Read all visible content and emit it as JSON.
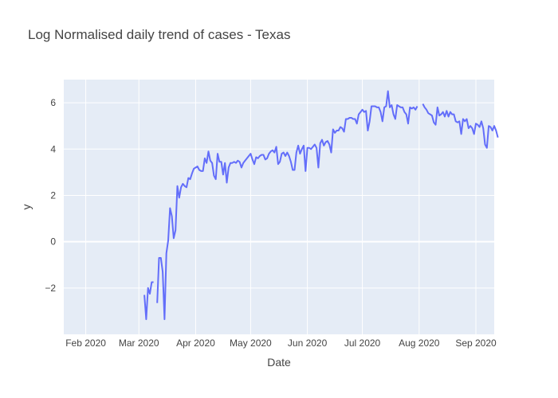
{
  "chart_data": {
    "type": "line",
    "title": "Log Normalised daily trend of cases - Texas",
    "xlabel": "Date",
    "ylabel": "y",
    "x_tick_labels": [
      "Feb 2020",
      "Mar 2020",
      "Apr 2020",
      "May 2020",
      "Jun 2020",
      "Jul 2020",
      "Aug 2020",
      "Sep 2020"
    ],
    "y_ticks": [
      -2,
      0,
      2,
      4,
      6
    ],
    "xlim": [
      "2020-01-20",
      "2020-09-11"
    ],
    "ylim": [
      -4.0,
      7.0
    ],
    "grid": true,
    "colors": {
      "line": "#636efa",
      "plot_bg": "#e5ecf6",
      "grid": "#ffffff"
    },
    "series": [
      {
        "segments": [
          [
            [
              "2020-03-04",
              -2.3
            ],
            [
              "2020-03-05",
              -3.35
            ],
            [
              "2020-03-06",
              -2.0
            ],
            [
              "2020-03-07",
              -2.25
            ],
            [
              "2020-03-08",
              -1.75
            ],
            [
              "2020-03-09",
              -1.75
            ]
          ],
          [
            [
              "2020-03-11",
              -2.65
            ],
            [
              "2020-03-12",
              -0.7
            ],
            [
              "2020-03-13",
              -0.7
            ],
            [
              "2020-03-14",
              -1.3
            ],
            [
              "2020-03-15",
              -3.35
            ],
            [
              "2020-03-16",
              -0.5
            ],
            [
              "2020-03-17",
              0.05
            ],
            [
              "2020-03-18",
              1.45
            ],
            [
              "2020-03-19",
              1.1
            ],
            [
              "2020-03-20",
              0.15
            ],
            [
              "2020-03-21",
              0.5
            ],
            [
              "2020-03-22",
              2.4
            ],
            [
              "2020-03-23",
              1.9
            ],
            [
              "2020-03-24",
              2.35
            ],
            [
              "2020-03-25",
              2.5
            ],
            [
              "2020-03-26",
              2.4
            ],
            [
              "2020-03-27",
              2.35
            ],
            [
              "2020-03-28",
              2.75
            ],
            [
              "2020-03-29",
              2.7
            ],
            [
              "2020-03-30",
              2.95
            ],
            [
              "2020-03-31",
              3.15
            ],
            [
              "2020-04-01",
              3.2
            ],
            [
              "2020-04-02",
              3.25
            ],
            [
              "2020-04-03",
              3.1
            ],
            [
              "2020-04-04",
              3.05
            ],
            [
              "2020-04-05",
              3.05
            ],
            [
              "2020-04-06",
              3.6
            ],
            [
              "2020-04-07",
              3.4
            ],
            [
              "2020-04-08",
              3.9
            ],
            [
              "2020-04-09",
              3.5
            ],
            [
              "2020-04-10",
              3.4
            ],
            [
              "2020-04-11",
              2.85
            ],
            [
              "2020-04-12",
              2.7
            ],
            [
              "2020-04-13",
              3.8
            ],
            [
              "2020-04-14",
              3.45
            ],
            [
              "2020-04-15",
              3.45
            ],
            [
              "2020-04-16",
              2.9
            ],
            [
              "2020-04-17",
              3.4
            ],
            [
              "2020-04-18",
              2.55
            ],
            [
              "2020-04-19",
              3.2
            ],
            [
              "2020-04-20",
              3.4
            ],
            [
              "2020-04-21",
              3.4
            ],
            [
              "2020-04-22",
              3.45
            ],
            [
              "2020-04-23",
              3.4
            ],
            [
              "2020-04-24",
              3.5
            ],
            [
              "2020-04-25",
              3.45
            ],
            [
              "2020-04-26",
              3.2
            ],
            [
              "2020-04-27",
              3.4
            ],
            [
              "2020-04-28",
              3.5
            ],
            [
              "2020-04-29",
              3.6
            ],
            [
              "2020-04-30",
              3.7
            ],
            [
              "2020-05-01",
              3.8
            ],
            [
              "2020-05-02",
              3.55
            ],
            [
              "2020-05-03",
              3.35
            ],
            [
              "2020-05-04",
              3.65
            ],
            [
              "2020-05-05",
              3.6
            ],
            [
              "2020-05-06",
              3.7
            ],
            [
              "2020-05-07",
              3.75
            ],
            [
              "2020-05-08",
              3.75
            ],
            [
              "2020-05-09",
              3.55
            ],
            [
              "2020-05-10",
              3.6
            ],
            [
              "2020-05-11",
              3.8
            ],
            [
              "2020-05-12",
              3.9
            ],
            [
              "2020-05-13",
              3.95
            ],
            [
              "2020-05-14",
              3.85
            ],
            [
              "2020-05-15",
              4.1
            ],
            [
              "2020-05-16",
              3.35
            ],
            [
              "2020-05-17",
              3.45
            ],
            [
              "2020-05-18",
              3.8
            ],
            [
              "2020-05-19",
              3.85
            ],
            [
              "2020-05-20",
              3.7
            ],
            [
              "2020-05-21",
              3.85
            ],
            [
              "2020-05-22",
              3.7
            ],
            [
              "2020-05-23",
              3.45
            ],
            [
              "2020-05-24",
              3.1
            ],
            [
              "2020-05-25",
              3.1
            ],
            [
              "2020-05-26",
              3.85
            ],
            [
              "2020-05-27",
              4.15
            ],
            [
              "2020-05-28",
              3.8
            ],
            [
              "2020-05-29",
              4.0
            ],
            [
              "2020-05-30",
              4.15
            ],
            [
              "2020-05-31",
              3.05
            ],
            [
              "2020-06-01",
              4.05
            ],
            [
              "2020-06-02",
              4.05
            ],
            [
              "2020-06-03",
              4.0
            ],
            [
              "2020-06-04",
              4.1
            ],
            [
              "2020-06-05",
              4.2
            ],
            [
              "2020-06-06",
              4.05
            ],
            [
              "2020-06-07",
              3.2
            ],
            [
              "2020-06-08",
              4.25
            ],
            [
              "2020-06-09",
              4.4
            ],
            [
              "2020-06-10",
              4.15
            ],
            [
              "2020-06-11",
              4.3
            ],
            [
              "2020-06-12",
              4.35
            ],
            [
              "2020-06-13",
              4.2
            ],
            [
              "2020-06-14",
              3.85
            ],
            [
              "2020-06-15",
              4.85
            ],
            [
              "2020-06-16",
              4.7
            ],
            [
              "2020-06-17",
              4.8
            ],
            [
              "2020-06-18",
              4.8
            ],
            [
              "2020-06-19",
              4.95
            ],
            [
              "2020-06-20",
              4.9
            ],
            [
              "2020-06-21",
              4.75
            ],
            [
              "2020-06-22",
              5.3
            ],
            [
              "2020-06-23",
              5.3
            ],
            [
              "2020-06-24",
              5.35
            ],
            [
              "2020-06-25",
              5.35
            ],
            [
              "2020-06-26",
              5.3
            ],
            [
              "2020-06-27",
              5.3
            ],
            [
              "2020-06-28",
              5.1
            ],
            [
              "2020-06-29",
              5.5
            ],
            [
              "2020-06-30",
              5.6
            ],
            [
              "2020-07-01",
              5.7
            ],
            [
              "2020-07-02",
              5.6
            ],
            [
              "2020-07-03",
              5.65
            ],
            [
              "2020-07-04",
              4.8
            ],
            [
              "2020-07-05",
              5.2
            ],
            [
              "2020-07-06",
              5.85
            ],
            [
              "2020-07-07",
              5.85
            ],
            [
              "2020-07-08",
              5.85
            ],
            [
              "2020-07-09",
              5.8
            ],
            [
              "2020-07-10",
              5.8
            ],
            [
              "2020-07-11",
              5.6
            ],
            [
              "2020-07-12",
              5.2
            ],
            [
              "2020-07-13",
              5.8
            ],
            [
              "2020-07-14",
              5.85
            ],
            [
              "2020-07-15",
              6.5
            ],
            [
              "2020-07-16",
              5.8
            ],
            [
              "2020-07-17",
              5.9
            ],
            [
              "2020-07-18",
              5.5
            ],
            [
              "2020-07-19",
              5.3
            ],
            [
              "2020-07-20",
              5.9
            ],
            [
              "2020-07-21",
              5.85
            ],
            [
              "2020-07-22",
              5.8
            ],
            [
              "2020-07-23",
              5.8
            ],
            [
              "2020-07-24",
              5.6
            ],
            [
              "2020-07-25",
              5.5
            ],
            [
              "2020-07-26",
              5.1
            ],
            [
              "2020-07-27",
              5.8
            ],
            [
              "2020-07-28",
              5.75
            ],
            [
              "2020-07-29",
              5.8
            ],
            [
              "2020-07-30",
              5.7
            ],
            [
              "2020-07-31",
              5.85
            ]
          ],
          [
            [
              "2020-08-03",
              5.95
            ],
            [
              "2020-08-04",
              5.8
            ],
            [
              "2020-08-05",
              5.7
            ],
            [
              "2020-08-06",
              5.55
            ],
            [
              "2020-08-07",
              5.5
            ],
            [
              "2020-08-08",
              5.45
            ],
            [
              "2020-08-09",
              5.15
            ],
            [
              "2020-08-10",
              5.05
            ],
            [
              "2020-08-11",
              5.8
            ],
            [
              "2020-08-12",
              5.45
            ],
            [
              "2020-08-13",
              5.5
            ],
            [
              "2020-08-14",
              5.6
            ],
            [
              "2020-08-15",
              5.4
            ],
            [
              "2020-08-16",
              5.65
            ],
            [
              "2020-08-17",
              5.4
            ],
            [
              "2020-08-18",
              5.6
            ],
            [
              "2020-08-19",
              5.5
            ],
            [
              "2020-08-20",
              5.5
            ],
            [
              "2020-08-21",
              5.2
            ],
            [
              "2020-08-22",
              5.15
            ],
            [
              "2020-08-23",
              5.2
            ],
            [
              "2020-08-24",
              4.65
            ],
            [
              "2020-08-25",
              5.3
            ],
            [
              "2020-08-26",
              5.2
            ],
            [
              "2020-08-27",
              5.3
            ],
            [
              "2020-08-28",
              4.9
            ],
            [
              "2020-08-29",
              5.0
            ],
            [
              "2020-08-30",
              4.9
            ],
            [
              "2020-08-31",
              4.65
            ],
            [
              "2020-09-01",
              5.1
            ],
            [
              "2020-09-02",
              5.05
            ],
            [
              "2020-09-03",
              4.95
            ],
            [
              "2020-09-04",
              5.2
            ],
            [
              "2020-09-05",
              4.9
            ],
            [
              "2020-09-06",
              4.2
            ],
            [
              "2020-09-07",
              4.05
            ],
            [
              "2020-09-08",
              5.0
            ],
            [
              "2020-09-09",
              4.95
            ],
            [
              "2020-09-10",
              4.8
            ],
            [
              "2020-09-11",
              5.0
            ],
            [
              "2020-09-12",
              4.8
            ],
            [
              "2020-09-13",
              4.5
            ]
          ]
        ]
      }
    ]
  }
}
